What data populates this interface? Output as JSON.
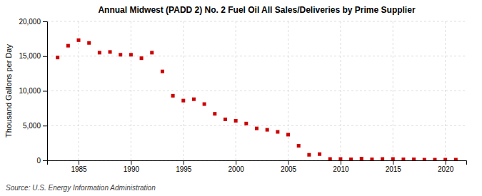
{
  "chart_data": {
    "type": "scatter",
    "title": "Annual Midwest (PADD 2) No. 2 Fuel Oil All Sales/Deliveries by Prime Supplier",
    "ylabel": "Thousand Gallons per Day",
    "annotations": [
      "Source: U.S. Energy Information Administration"
    ],
    "x": [
      1983,
      1984,
      1985,
      1986,
      1987,
      1988,
      1989,
      1990,
      1991,
      1992,
      1993,
      1994,
      1995,
      1996,
      1997,
      1998,
      1999,
      2000,
      2001,
      2002,
      2003,
      2004,
      2005,
      2006,
      2007,
      2008,
      2009,
      2010,
      2011,
      2012,
      2013,
      2014,
      2015,
      2016,
      2017,
      2018,
      2019,
      2020,
      2021
    ],
    "values": [
      14800,
      16500,
      17300,
      16900,
      15500,
      15600,
      15200,
      15200,
      14700,
      15500,
      12800,
      9300,
      8600,
      8800,
      8100,
      6700,
      5900,
      5700,
      5300,
      4600,
      4400,
      4100,
      3700,
      2100,
      800,
      900,
      200,
      200,
      150,
      250,
      150,
      200,
      200,
      150,
      150,
      100,
      100,
      100,
      100
    ],
    "color": "#cc0000",
    "marker": "square",
    "grid": true,
    "xlim": [
      1982,
      2022
    ],
    "ylim": [
      0,
      20000
    ],
    "xticks": [
      1985,
      1990,
      1995,
      2000,
      2005,
      2010,
      2015,
      2020
    ],
    "yticks": [
      0,
      {
        "value": 5000,
        "label": "5,000"
      },
      {
        "value": 10000,
        "label": "10,000"
      },
      {
        "value": 15000,
        "label": "15,000"
      },
      {
        "value": 20000,
        "label": "20,000"
      }
    ]
  }
}
